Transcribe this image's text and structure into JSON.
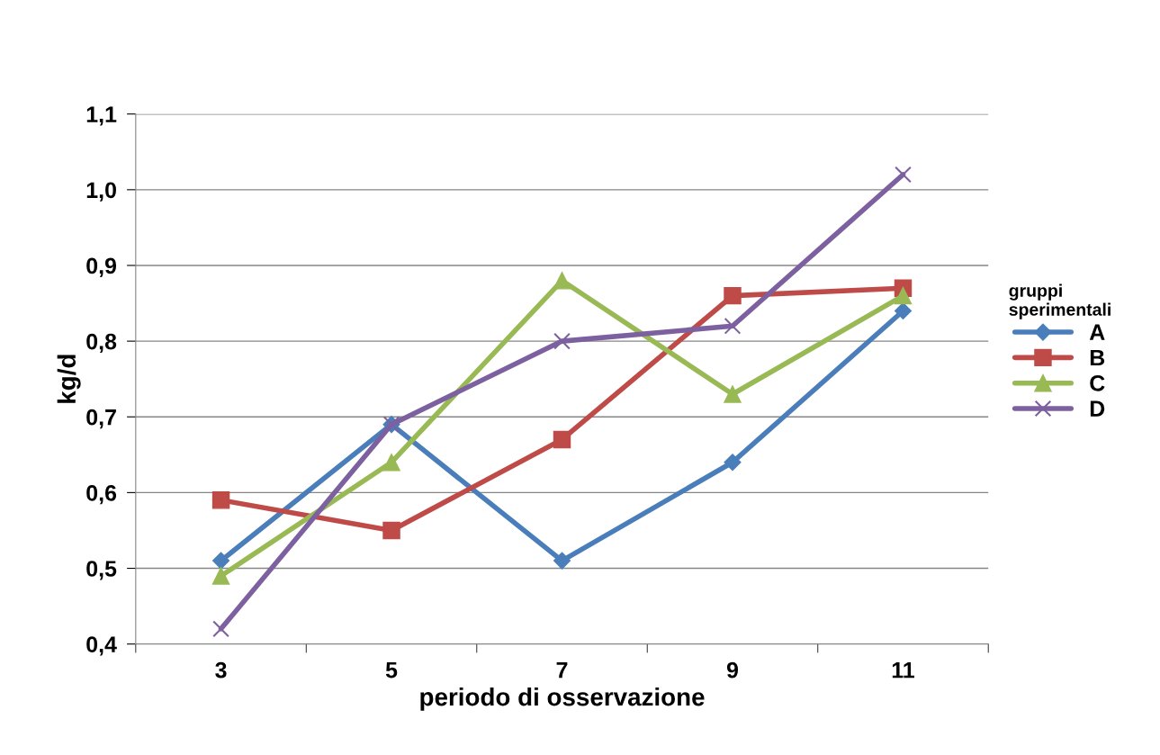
{
  "chart_data": {
    "type": "line",
    "xlabel": "periodo di osservazione",
    "ylabel": "kg/d",
    "legend_title": "gruppi\nsperimentali",
    "legend": "right",
    "grid": "y",
    "categories": [
      "3",
      "5",
      "7",
      "9",
      "11"
    ],
    "ylim": [
      0.4,
      1.1
    ],
    "yticks": [
      {
        "value": 0.4,
        "label": "0,4"
      },
      {
        "value": 0.5,
        "label": "0,5"
      },
      {
        "value": 0.6,
        "label": "0,6"
      },
      {
        "value": 0.7,
        "label": "0,7"
      },
      {
        "value": 0.8,
        "label": "0,8"
      },
      {
        "value": 0.9,
        "label": "0,9"
      },
      {
        "value": 1.0,
        "label": "1,0"
      },
      {
        "value": 1.1,
        "label": "1,1"
      }
    ],
    "series": [
      {
        "name": "A",
        "color": "#4a7ebb",
        "marker": "diamond",
        "values": [
          0.51,
          0.69,
          0.51,
          0.64,
          0.84
        ]
      },
      {
        "name": "B",
        "color": "#be4b48",
        "marker": "square",
        "values": [
          0.59,
          0.55,
          0.67,
          0.86,
          0.87
        ]
      },
      {
        "name": "C",
        "color": "#98b954",
        "marker": "triangle",
        "values": [
          0.49,
          0.64,
          0.88,
          0.73,
          0.86
        ]
      },
      {
        "name": "D",
        "color": "#7d60a0",
        "marker": "cross",
        "values": [
          0.42,
          0.69,
          0.8,
          0.82,
          1.02
        ]
      }
    ]
  }
}
